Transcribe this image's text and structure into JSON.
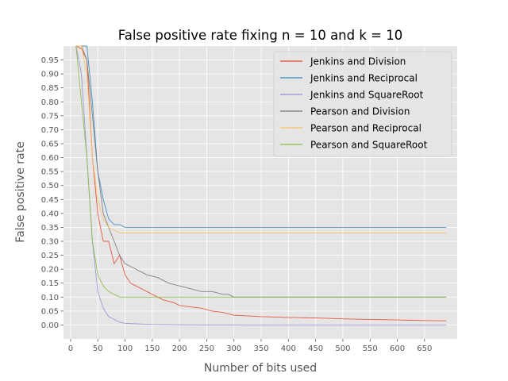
{
  "chart_data": {
    "type": "line",
    "title": "False positive rate fixing n = 10 and k = 10",
    "xlabel": "Number of bits used",
    "ylabel": "False positive rate",
    "xlim": [
      -13,
      710
    ],
    "ylim": [
      -0.05,
      1.0
    ],
    "xticks": [
      0,
      50,
      100,
      150,
      200,
      250,
      300,
      350,
      400,
      450,
      500,
      550,
      600,
      650
    ],
    "yticks": [
      0.0,
      0.05,
      0.1,
      0.15,
      0.2,
      0.25,
      0.3,
      0.35,
      0.4,
      0.45,
      0.5,
      0.55,
      0.6,
      0.65,
      0.7,
      0.75,
      0.8,
      0.85,
      0.9,
      0.95
    ],
    "ytick_labels": [
      "0.00",
      "0.05",
      "0.10",
      "0.15",
      "0.20",
      "0.25",
      "0.30",
      "0.35",
      "0.40",
      "0.45",
      "0.50",
      "0.55",
      "0.60",
      "0.65",
      "0.70",
      "0.75",
      "0.80",
      "0.85",
      "0.90",
      "0.95"
    ],
    "grid": true,
    "legend_position": "top-right",
    "series": [
      {
        "name": "Jenkins and Division",
        "color": "#e24a33",
        "x": [
          10,
          20,
          30,
          40,
          50,
          60,
          70,
          80,
          90,
          100,
          110,
          120,
          130,
          140,
          150,
          160,
          170,
          180,
          190,
          200,
          220,
          240,
          260,
          280,
          290,
          300,
          350,
          400,
          450,
          500,
          550,
          600,
          650,
          690
        ],
        "y": [
          1.0,
          0.99,
          0.95,
          0.6,
          0.4,
          0.3,
          0.3,
          0.22,
          0.25,
          0.18,
          0.15,
          0.14,
          0.13,
          0.12,
          0.11,
          0.1,
          0.09,
          0.085,
          0.08,
          0.07,
          0.065,
          0.06,
          0.05,
          0.045,
          0.04,
          0.035,
          0.03,
          0.027,
          0.025,
          0.022,
          0.02,
          0.018,
          0.016,
          0.015
        ]
      },
      {
        "name": "Jenkins and Reciprocal",
        "color": "#348abd",
        "x": [
          10,
          20,
          30,
          40,
          50,
          60,
          70,
          80,
          90,
          100,
          150,
          200,
          250,
          290,
          300,
          350,
          400,
          450,
          500,
          550,
          600,
          650,
          690
        ],
        "y": [
          1.0,
          1.0,
          1.0,
          0.8,
          0.55,
          0.45,
          0.38,
          0.36,
          0.36,
          0.35,
          0.35,
          0.35,
          0.35,
          0.35,
          0.35,
          0.35,
          0.35,
          0.35,
          0.35,
          0.35,
          0.35,
          0.35,
          0.35
        ]
      },
      {
        "name": "Jenkins and SquareRoot",
        "color": "#988ed5",
        "x": [
          10,
          20,
          30,
          40,
          50,
          60,
          70,
          80,
          90,
          100,
          120,
          150,
          200,
          250,
          290,
          300,
          350,
          400,
          450,
          500,
          550,
          600,
          650,
          690
        ],
        "y": [
          1.0,
          0.9,
          0.6,
          0.3,
          0.12,
          0.06,
          0.03,
          0.02,
          0.01,
          0.006,
          0.004,
          0.002,
          0.001,
          0.0005,
          0.0003,
          0.0003,
          0.0002,
          0.0002,
          0.0001,
          0.0001,
          0.0001,
          0.0001,
          0.0001,
          0.0001
        ]
      },
      {
        "name": "Pearson and Division",
        "color": "#777777",
        "x": [
          10,
          20,
          30,
          40,
          50,
          60,
          70,
          80,
          90,
          100,
          120,
          140,
          160,
          180,
          200,
          220,
          240,
          260,
          280,
          290,
          300,
          350,
          400,
          450,
          500,
          550,
          600,
          650,
          690
        ],
        "y": [
          1.0,
          1.0,
          0.95,
          0.75,
          0.55,
          0.4,
          0.35,
          0.3,
          0.25,
          0.22,
          0.2,
          0.18,
          0.17,
          0.15,
          0.14,
          0.13,
          0.12,
          0.12,
          0.11,
          0.11,
          0.1,
          0.1,
          0.1,
          0.1,
          0.1,
          0.1,
          0.1,
          0.1,
          0.1
        ]
      },
      {
        "name": "Pearson and Reciprocal",
        "color": "#fbc15e",
        "x": [
          10,
          20,
          30,
          40,
          50,
          60,
          70,
          80,
          90,
          100,
          150,
          200,
          250,
          290,
          300,
          350,
          400,
          450,
          500,
          550,
          600,
          650,
          690
        ],
        "y": [
          1.0,
          1.0,
          0.9,
          0.6,
          0.45,
          0.38,
          0.35,
          0.34,
          0.33,
          0.33,
          0.33,
          0.33,
          0.33,
          0.33,
          0.33,
          0.33,
          0.33,
          0.33,
          0.33,
          0.33,
          0.33,
          0.33,
          0.33
        ]
      },
      {
        "name": "Pearson and SquareRoot",
        "color": "#8eba42",
        "x": [
          10,
          20,
          30,
          40,
          50,
          60,
          70,
          80,
          90,
          100,
          150,
          200,
          250,
          290,
          300,
          350,
          400,
          450,
          500,
          550,
          600,
          650,
          690
        ],
        "y": [
          1.0,
          0.8,
          0.6,
          0.3,
          0.18,
          0.14,
          0.12,
          0.11,
          0.1,
          0.1,
          0.1,
          0.1,
          0.1,
          0.1,
          0.1,
          0.1,
          0.1,
          0.1,
          0.1,
          0.1,
          0.1,
          0.1,
          0.1
        ]
      }
    ]
  }
}
